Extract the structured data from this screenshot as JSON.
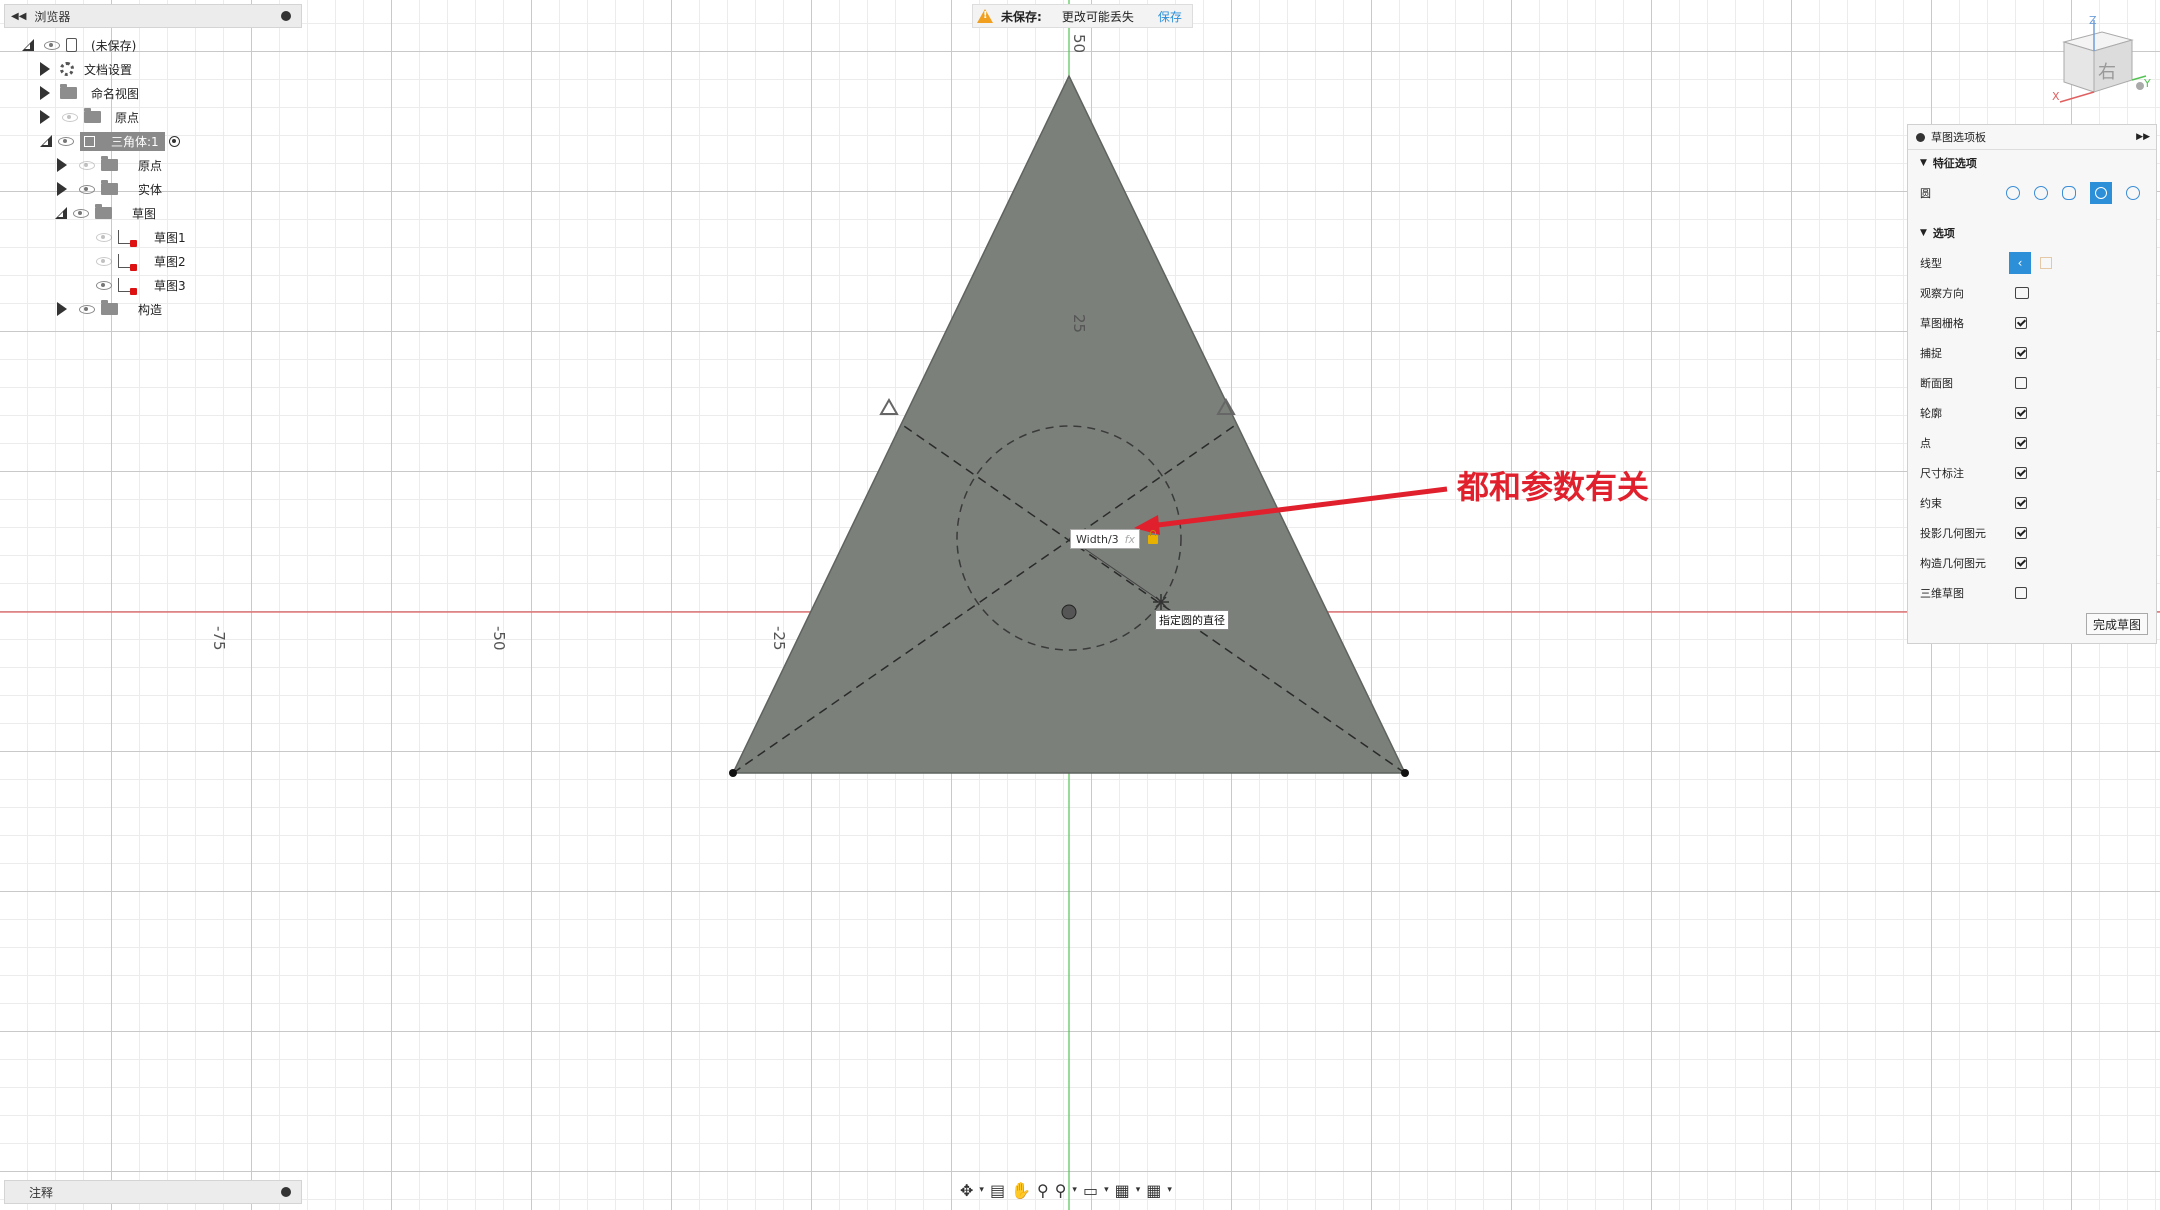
{
  "browser": {
    "title": "浏览器",
    "root_label": "(未保存)",
    "items": [
      {
        "label": "文档设置"
      },
      {
        "label": "命名视图"
      },
      {
        "label": "原点"
      },
      {
        "label": "三角体:1"
      },
      {
        "label": "原点"
      },
      {
        "label": "实体"
      },
      {
        "label": "草图"
      },
      {
        "label": "草图1"
      },
      {
        "label": "草图2"
      },
      {
        "label": "草图3"
      },
      {
        "label": "构造"
      }
    ]
  },
  "comments_panel": {
    "title": "注释"
  },
  "save_bar": {
    "status": "未保存:",
    "message": "更改可能丢失",
    "save_label": "保存"
  },
  "axes": {
    "x_ticks": [
      "-75",
      "-50",
      "-25"
    ],
    "y_ticks": [
      "50",
      "25"
    ]
  },
  "sketch": {
    "dimension_value": "Width/3",
    "fx_label": "fx",
    "tooltip": "指定圆的直径"
  },
  "annotation": {
    "text": "都和参数有关",
    "color": "#e0202c"
  },
  "palette": {
    "title": "草图选项板",
    "feature_section": "特征选项",
    "circle_label": "圆",
    "options_section": "选项",
    "rows": [
      {
        "label": "线型"
      },
      {
        "label": "观察方向"
      },
      {
        "label": "草图栅格",
        "checked": true
      },
      {
        "label": "捕捉",
        "checked": true
      },
      {
        "label": "断面图",
        "checked": false
      },
      {
        "label": "轮廓",
        "checked": true
      },
      {
        "label": "点",
        "checked": true
      },
      {
        "label": "尺寸标注",
        "checked": true
      },
      {
        "label": "约束",
        "checked": true
      },
      {
        "label": "投影几何图元",
        "checked": true
      },
      {
        "label": "构造几何图元",
        "checked": true
      },
      {
        "label": "三维草图",
        "checked": false
      }
    ],
    "finish_label": "完成草图"
  },
  "viewcube": {
    "face_label": "右",
    "axis_z": "Z",
    "axis_x": "X",
    "axis_y": "Y"
  },
  "colors": {
    "shape_fill": "#7b807b",
    "x_axis": "#e23b3b",
    "y_axis": "#3cbf3c",
    "accent": "#2c8fd8"
  }
}
